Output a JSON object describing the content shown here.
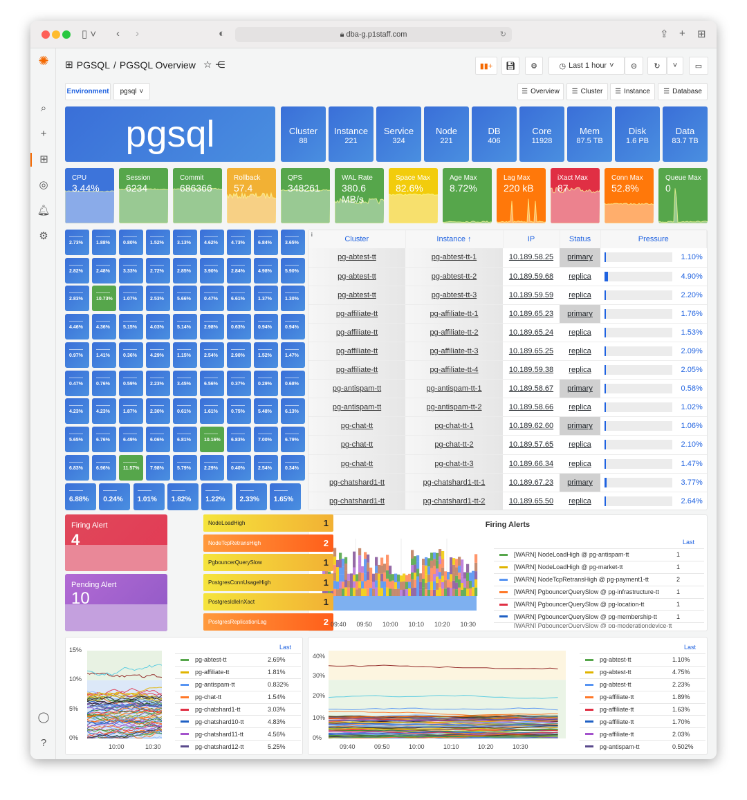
{
  "browser": {
    "url": "dba-g.p1staff.com"
  },
  "header": {
    "folder": "PGSQL",
    "separator": "/",
    "title": "PGSQL Overview",
    "time_range": "Last 1 hour"
  },
  "variables": {
    "label": "Environment",
    "value": "pgsql"
  },
  "links": [
    "Overview",
    "Cluster",
    "Instance",
    "Database"
  ],
  "hero": "pgsql",
  "stats": [
    {
      "label": "Cluster",
      "value": "88"
    },
    {
      "label": "Instance",
      "value": "221"
    },
    {
      "label": "Service",
      "value": "324"
    },
    {
      "label": "Node",
      "value": "221"
    },
    {
      "label": "DB",
      "value": "406"
    },
    {
      "label": "Core",
      "value": "11928"
    },
    {
      "label": "Mem",
      "value": "87.5 TB"
    },
    {
      "label": "Disk",
      "value": "1.6 PB"
    },
    {
      "label": "Data",
      "value": "83.7 TB"
    }
  ],
  "metrics": [
    {
      "label": "CPU",
      "value": "3.44%",
      "color": "#3d74da"
    },
    {
      "label": "Session",
      "value": "6234",
      "color": "#56a64b"
    },
    {
      "label": "Commit",
      "value": "686366",
      "color": "#56a64b"
    },
    {
      "label": "Rollback",
      "value": "57.4",
      "color": "#f2b134"
    },
    {
      "label": "QPS",
      "value": "348261",
      "color": "#56a64b"
    },
    {
      "label": "WAL Rate",
      "value": "380.6 MB/s",
      "color": "#56a64b"
    },
    {
      "label": "Space Max",
      "value": "82.6%",
      "color": "#f2cc0c"
    },
    {
      "label": "Age Max",
      "value": "8.72%",
      "color": "#56a64b"
    },
    {
      "label": "Lag Max",
      "value": "220 kB",
      "color": "#ff780a"
    },
    {
      "label": "iXact Max",
      "value": "87",
      "color": "#e02f44"
    },
    {
      "label": "Conn Max",
      "value": "52.8%",
      "color": "#ff780a"
    },
    {
      "label": "Queue Max",
      "value": "0",
      "color": "#56a64b"
    }
  ],
  "pressure_grid": [
    "2.73%",
    "1.88%",
    "0.80%",
    "1.52%",
    "3.13%",
    "4.62%",
    "4.73%",
    "6.84%",
    "3.65%",
    "2.82%",
    "2.48%",
    "3.33%",
    "2.72%",
    "2.85%",
    "3.90%",
    "2.84%",
    "4.98%",
    "5.90%",
    "2.83%",
    "10.73%",
    "1.07%",
    "2.53%",
    "5.66%",
    "0.47%",
    "6.61%",
    "1.37%",
    "1.30%",
    "4.46%",
    "4.36%",
    "5.15%",
    "4.03%",
    "5.14%",
    "2.98%",
    "0.63%",
    "0.94%",
    "0.94%",
    "0.97%",
    "1.41%",
    "0.36%",
    "4.29%",
    "1.15%",
    "2.54%",
    "2.90%",
    "1.52%",
    "1.47%",
    "0.47%",
    "0.76%",
    "0.59%",
    "2.23%",
    "3.45%",
    "6.56%",
    "0.37%",
    "0.29%",
    "0.68%",
    "4.23%",
    "4.23%",
    "1.87%",
    "2.30%",
    "0.61%",
    "1.61%",
    "0.75%",
    "5.48%",
    "6.13%",
    "5.65%",
    "6.76%",
    "6.49%",
    "6.06%",
    "6.81%",
    "10.16%",
    "6.83%",
    "7.00%",
    "6.79%",
    "6.83%",
    "6.96%",
    "11.57%",
    "7.98%",
    "5.79%",
    "2.29%",
    "0.40%",
    "2.54%",
    "0.34%",
    "6.88%",
    "0.24%",
    "1.01%",
    "1.82%",
    "1.22%",
    "2.33%",
    "1.65%"
  ],
  "table": {
    "info": "i",
    "headers": [
      "Cluster",
      "Instance ↑",
      "IP",
      "Status",
      "Pressure"
    ],
    "rows": [
      [
        "pg-abtest-tt",
        "pg-abtest-tt-1",
        "10.189.58.25",
        "primary",
        "1.10%"
      ],
      [
        "pg-abtest-tt",
        "pg-abtest-tt-2",
        "10.189.59.68",
        "replica",
        "4.90%"
      ],
      [
        "pg-abtest-tt",
        "pg-abtest-tt-3",
        "10.189.59.59",
        "replica",
        "2.20%"
      ],
      [
        "pg-affiliate-tt",
        "pg-affiliate-tt-1",
        "10.189.65.23",
        "primary",
        "1.76%"
      ],
      [
        "pg-affiliate-tt",
        "pg-affiliate-tt-2",
        "10.189.65.24",
        "replica",
        "1.53%"
      ],
      [
        "pg-affiliate-tt",
        "pg-affiliate-tt-3",
        "10.189.65.25",
        "replica",
        "2.09%"
      ],
      [
        "pg-affiliate-tt",
        "pg-affiliate-tt-4",
        "10.189.59.38",
        "replica",
        "2.05%"
      ],
      [
        "pg-antispam-tt",
        "pg-antispam-tt-1",
        "10.189.58.67",
        "primary",
        "0.58%"
      ],
      [
        "pg-antispam-tt",
        "pg-antispam-tt-2",
        "10.189.58.66",
        "replica",
        "1.02%"
      ],
      [
        "pg-chat-tt",
        "pg-chat-tt-1",
        "10.189.62.60",
        "primary",
        "1.06%"
      ],
      [
        "pg-chat-tt",
        "pg-chat-tt-2",
        "10.189.57.65",
        "replica",
        "2.10%"
      ],
      [
        "pg-chat-tt",
        "pg-chat-tt-3",
        "10.189.66.34",
        "replica",
        "1.47%"
      ],
      [
        "pg-chatshard1-tt",
        "pg-chatshard1-tt-1",
        "10.189.67.23",
        "primary",
        "3.77%"
      ],
      [
        "pg-chatshard1-tt",
        "pg-chatshard1-tt-2",
        "10.189.65.50",
        "replica",
        "2.64%"
      ]
    ]
  },
  "alerts": {
    "firing_label": "Firing Alert",
    "firing_value": "4",
    "pending_label": "Pending Alert",
    "pending_value": "10",
    "list": [
      {
        "name": "NodeLoadHigh",
        "count": "1",
        "level": "yellow"
      },
      {
        "name": "NodeTcpRetransHigh",
        "count": "2",
        "level": "orange"
      },
      {
        "name": "PgbouncerQuerySlow",
        "count": "1",
        "level": "yellow"
      },
      {
        "name": "PostgresConnUsageHigh",
        "count": "1",
        "level": "yellow"
      },
      {
        "name": "PostgresIdleInXact",
        "count": "1",
        "level": "yellow"
      },
      {
        "name": "PostgresReplicationLag",
        "count": "2",
        "level": "orange"
      }
    ]
  },
  "chart_data": [
    {
      "type": "bar",
      "title": "Firing Alerts",
      "stacked": true,
      "x_ticks": [
        "09:40",
        "09:50",
        "10:00",
        "10:10",
        "10:20",
        "10:30"
      ],
      "legend_header": "Last",
      "legend_placement": "right",
      "series": [
        {
          "name": "[WARN] NodeLoadHigh @ pg-antispam-tt",
          "last": "1",
          "color": "#56a64b"
        },
        {
          "name": "[WARN] NodeLoadHigh @ pg-market-tt",
          "last": "1",
          "color": "#e0b400"
        },
        {
          "name": "[WARN] NodeTcpRetransHigh @ pg-payment1-tt",
          "last": "2",
          "color": "#5794f2"
        },
        {
          "name": "[WARN] PgbouncerQuerySlow @ pg-infrastructure-tt",
          "last": "1",
          "color": "#ff7828"
        },
        {
          "name": "[WARN] PgbouncerQuerySlow @ pg-location-tt",
          "last": "1",
          "color": "#e02f44"
        },
        {
          "name": "[WARN] PgbouncerQuerySlow @ pg-membership-tt",
          "last": "1",
          "color": "#1f60c4"
        }
      ],
      "truncated_row": "[WARN] PgbouncerQuerySlow @ pg-moderationdevice-tt"
    },
    {
      "type": "line",
      "y_ticks": [
        "15%",
        "10%",
        "5%",
        "0%"
      ],
      "x_ticks": [
        "10:00",
        "10:30"
      ],
      "ylim": [
        0,
        15
      ],
      "legend_header": "Last",
      "legend_placement": "right",
      "series": [
        {
          "name": "pg-abtest-tt",
          "last": "2.69%",
          "color": "#56a64b"
        },
        {
          "name": "pg-affiliate-tt",
          "last": "1.81%",
          "color": "#e0b400"
        },
        {
          "name": "pg-antispam-tt",
          "last": "0.832%",
          "color": "#5794f2"
        },
        {
          "name": "pg-chat-tt",
          "last": "1.54%",
          "color": "#ff7828"
        },
        {
          "name": "pg-chatshard1-tt",
          "last": "3.03%",
          "color": "#e02f44"
        },
        {
          "name": "pg-chatshard10-tt",
          "last": "4.83%",
          "color": "#1f60c4"
        },
        {
          "name": "pg-chatshard11-tt",
          "last": "4.56%",
          "color": "#a352cc"
        },
        {
          "name": "pg-chatshard12-tt",
          "last": "5.25%",
          "color": "#5a4a8c"
        }
      ]
    },
    {
      "type": "line",
      "y_ticks": [
        "40%",
        "30%",
        "20%",
        "10%",
        "0%"
      ],
      "x_ticks": [
        "09:40",
        "09:50",
        "10:00",
        "10:10",
        "10:20",
        "10:30"
      ],
      "ylim": [
        0,
        45
      ],
      "legend_header": "Last",
      "legend_placement": "right",
      "series": [
        {
          "name": "pg-abtest-tt",
          "last": "1.10%",
          "color": "#56a64b"
        },
        {
          "name": "pg-abtest-tt",
          "last": "4.75%",
          "color": "#e0b400"
        },
        {
          "name": "pg-abtest-tt",
          "last": "2.23%",
          "color": "#5794f2"
        },
        {
          "name": "pg-affiliate-tt",
          "last": "1.89%",
          "color": "#ff7828"
        },
        {
          "name": "pg-affiliate-tt",
          "last": "1.63%",
          "color": "#e02f44"
        },
        {
          "name": "pg-affiliate-tt",
          "last": "1.70%",
          "color": "#1f60c4"
        },
        {
          "name": "pg-affiliate-tt",
          "last": "2.03%",
          "color": "#a352cc"
        },
        {
          "name": "pg-antispam-tt",
          "last": "0.502%",
          "color": "#5a4a8c"
        }
      ]
    }
  ]
}
